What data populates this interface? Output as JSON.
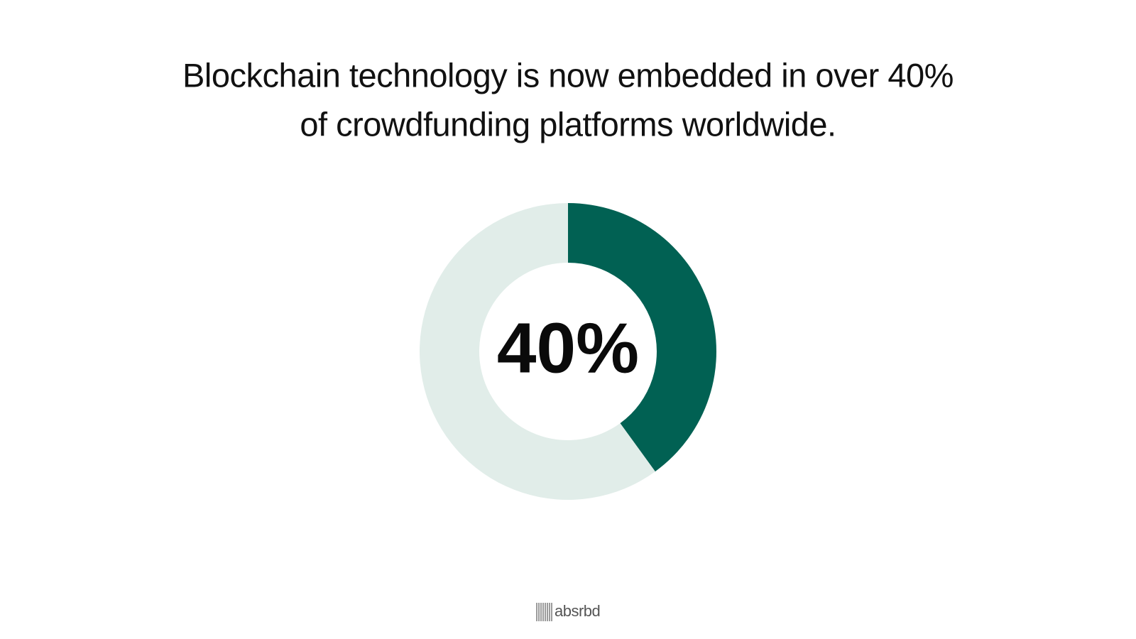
{
  "chart_data": {
    "type": "donut",
    "title": [
      "Blockchain technology is now embedded in over 40%",
      "of crowdfunding platforms worldwide."
    ],
    "values": [
      40,
      60
    ],
    "colors": [
      "#016153",
      "#e1ede9"
    ],
    "center_label": "40%"
  },
  "brand": "absrbd"
}
